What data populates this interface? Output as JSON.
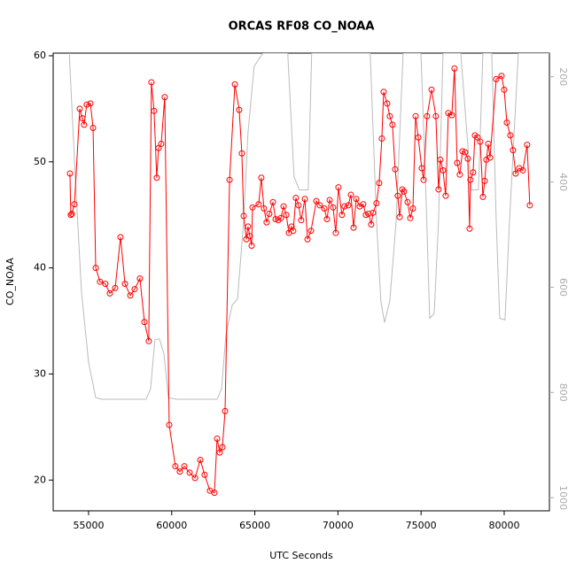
{
  "chart_data": {
    "type": "line",
    "title": "ORCAS RF08 CO_NOAA",
    "x_label": "UTC Seconds",
    "y_label": "CO_NOAA",
    "xlim": [
      52870,
      82720
    ],
    "xticks": [
      55000,
      60000,
      65000,
      70000,
      75000,
      80000
    ],
    "ylim": [
      17.1,
      60.25
    ],
    "yticks": [
      20,
      30,
      40,
      50,
      60
    ],
    "y2lim": [
      1025,
      155
    ],
    "y2ticks": [
      200,
      400,
      600,
      800,
      1000
    ],
    "series": [
      {
        "name": "CO_NOAA",
        "color": "#ff0000",
        "markers": true,
        "x": [
          53880,
          53930,
          53990,
          54150,
          54470,
          54630,
          54730,
          54890,
          55110,
          55270,
          55430,
          55690,
          56010,
          56280,
          56600,
          56920,
          57190,
          57510,
          57770,
          58090,
          58360,
          58620,
          58780,
          58940,
          59100,
          59210,
          59370,
          59580,
          59850,
          60220,
          60490,
          60760,
          61080,
          61400,
          61720,
          61980,
          62300,
          62570,
          62730,
          62890,
          63050,
          63210,
          63480,
          63800,
          64060,
          64220,
          64330,
          64490,
          64590,
          64700,
          64810,
          64860,
          65230,
          65390,
          65550,
          65710,
          65870,
          66090,
          66250,
          66410,
          66570,
          66730,
          66890,
          67050,
          67210,
          67310,
          67470,
          67630,
          67790,
          68010,
          68170,
          68380,
          68700,
          68910,
          69180,
          69340,
          69500,
          69710,
          69870,
          70030,
          70240,
          70400,
          70620,
          70780,
          70940,
          71100,
          71310,
          71520,
          71680,
          71840,
          72000,
          72110,
          72320,
          72480,
          72640,
          72750,
          72960,
          73120,
          73280,
          73440,
          73600,
          73710,
          73870,
          73970,
          74190,
          74350,
          74510,
          74670,
          74830,
          75040,
          75150,
          75360,
          75630,
          75890,
          76050,
          76160,
          76320,
          76480,
          76640,
          76850,
          77010,
          77170,
          77330,
          77490,
          77650,
          77810,
          77920,
          77970,
          78130,
          78240,
          78400,
          78560,
          78720,
          78830,
          78930,
          79040,
          79150,
          79520,
          79840,
          80000,
          80160,
          80370,
          80530,
          80690,
          80900,
          81120,
          81380,
          81540
        ],
        "values": [
          48.9,
          45.0,
          45.1,
          46.0,
          55.0,
          54.1,
          53.5,
          55.4,
          55.5,
          53.2,
          40.0,
          38.7,
          38.5,
          37.6,
          38.1,
          42.9,
          38.5,
          37.4,
          38.0,
          39.0,
          34.9,
          33.1,
          57.5,
          54.8,
          48.5,
          51.3,
          51.7,
          56.1,
          25.2,
          21.3,
          20.8,
          21.3,
          20.7,
          20.2,
          21.9,
          20.5,
          19.0,
          18.8,
          23.9,
          22.6,
          23.1,
          26.5,
          48.3,
          57.3,
          54.9,
          50.8,
          44.9,
          42.7,
          43.9,
          43.0,
          42.1,
          45.7,
          46.0,
          48.5,
          45.6,
          44.3,
          45.1,
          46.2,
          44.6,
          44.5,
          44.7,
          45.8,
          45.0,
          43.3,
          43.9,
          43.5,
          46.6,
          45.9,
          44.5,
          46.5,
          42.7,
          43.5,
          46.3,
          45.9,
          45.6,
          44.6,
          46.4,
          45.7,
          43.3,
          47.6,
          45.0,
          45.8,
          45.9,
          46.9,
          43.8,
          46.5,
          45.8,
          46.0,
          45.0,
          45.1,
          44.1,
          45.2,
          46.1,
          48.0,
          52.2,
          56.6,
          55.5,
          54.3,
          53.5,
          49.3,
          46.8,
          44.8,
          47.4,
          47.2,
          46.2,
          44.7,
          45.6,
          54.3,
          52.3,
          49.4,
          48.3,
          54.3,
          56.8,
          54.3,
          47.4,
          50.2,
          49.2,
          46.8,
          54.6,
          54.4,
          58.8,
          49.9,
          48.8,
          51.0,
          50.9,
          50.3,
          43.7,
          48.3,
          49.0,
          52.5,
          52.3,
          51.9,
          46.7,
          48.2,
          50.2,
          51.7,
          50.4,
          57.8,
          58.1,
          56.8,
          53.7,
          52.5,
          51.1,
          48.9,
          49.4,
          49.2,
          51.6,
          45.9
        ]
      },
      {
        "color": "#bbbbbb",
        "axis": "y2",
        "markers": false,
        "x": [
          53830,
          54200,
          54570,
          55000,
          55430,
          55800,
          58460,
          58730,
          58990,
          59260,
          59530,
          59800,
          60330,
          62730,
          63000,
          63260,
          63640,
          63960,
          64330,
          64590,
          64960,
          65490,
          66980,
          67360,
          67680,
          68210,
          68420,
          71940,
          72320,
          72580,
          72800,
          73120,
          73500,
          73920,
          74990,
          75260,
          75520,
          75790,
          76050,
          76320,
          77390,
          77810,
          78030,
          78450,
          78720,
          79250,
          79520,
          79730,
          80050,
          80320,
          80850,
          82720
        ],
        "values": [
          150,
          390,
          608,
          743,
          810,
          813,
          813,
          793,
          700,
          698,
          726,
          810,
          813,
          813,
          793,
          690,
          634,
          622,
          474,
          306,
          180,
          155,
          155,
          390,
          415,
          415,
          155,
          155,
          474,
          626,
          667,
          626,
          474,
          155,
          155,
          390,
          659,
          650,
          474,
          155,
          155,
          330,
          415,
          415,
          155,
          155,
          474,
          659,
          662,
          474,
          155,
          155
        ]
      }
    ]
  }
}
